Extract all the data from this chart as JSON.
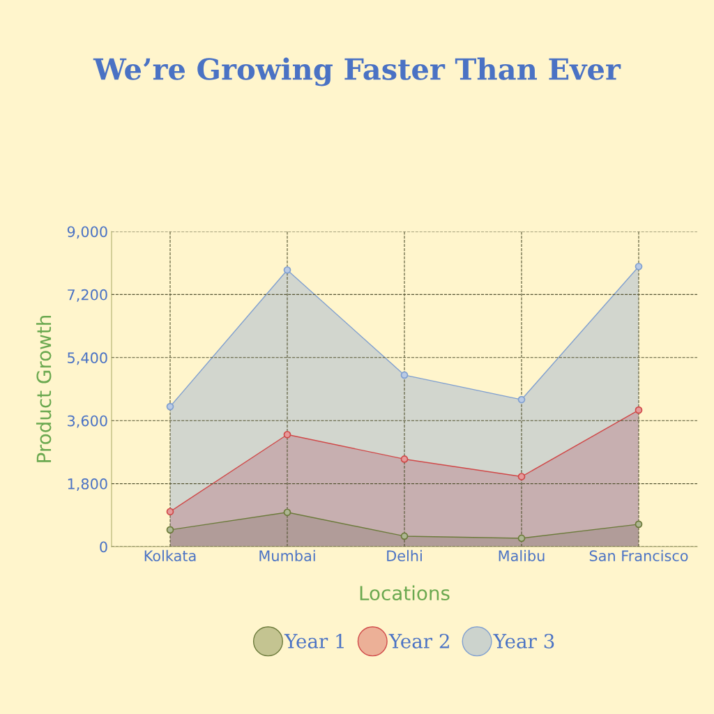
{
  "chart_data": {
    "type": "area",
    "title": "We’re Growing Faster Than Ever",
    "xlabel": "Locations",
    "ylabel": "Product Growth",
    "categories": [
      "Kolkata",
      "Mumbai",
      "Delhi",
      "Malibu",
      "San Francisco"
    ],
    "series": [
      {
        "name": "Year 1",
        "color": "#6b7a3a",
        "values": [
          480,
          980,
          300,
          240,
          640
        ]
      },
      {
        "name": "Year 2",
        "color": "#d04848",
        "values": [
          1000,
          3200,
          2500,
          2000,
          3900
        ]
      },
      {
        "name": "Year 3",
        "color": "#7f9fd0",
        "values": [
          4000,
          7900,
          4900,
          4200,
          8000
        ]
      }
    ],
    "ylim": [
      0,
      9000
    ],
    "yticks": [
      {
        "value": 0,
        "label": "0"
      },
      {
        "value": 1800,
        "label": "1,800"
      },
      {
        "value": 3600,
        "label": "3,600"
      },
      {
        "value": 5400,
        "label": "5,400"
      },
      {
        "value": 7200,
        "label": "7,200"
      },
      {
        "value": 9000,
        "label": "9,000"
      }
    ],
    "grid": true,
    "legend": "bottom",
    "marker": "circle",
    "line_style": "solid"
  }
}
